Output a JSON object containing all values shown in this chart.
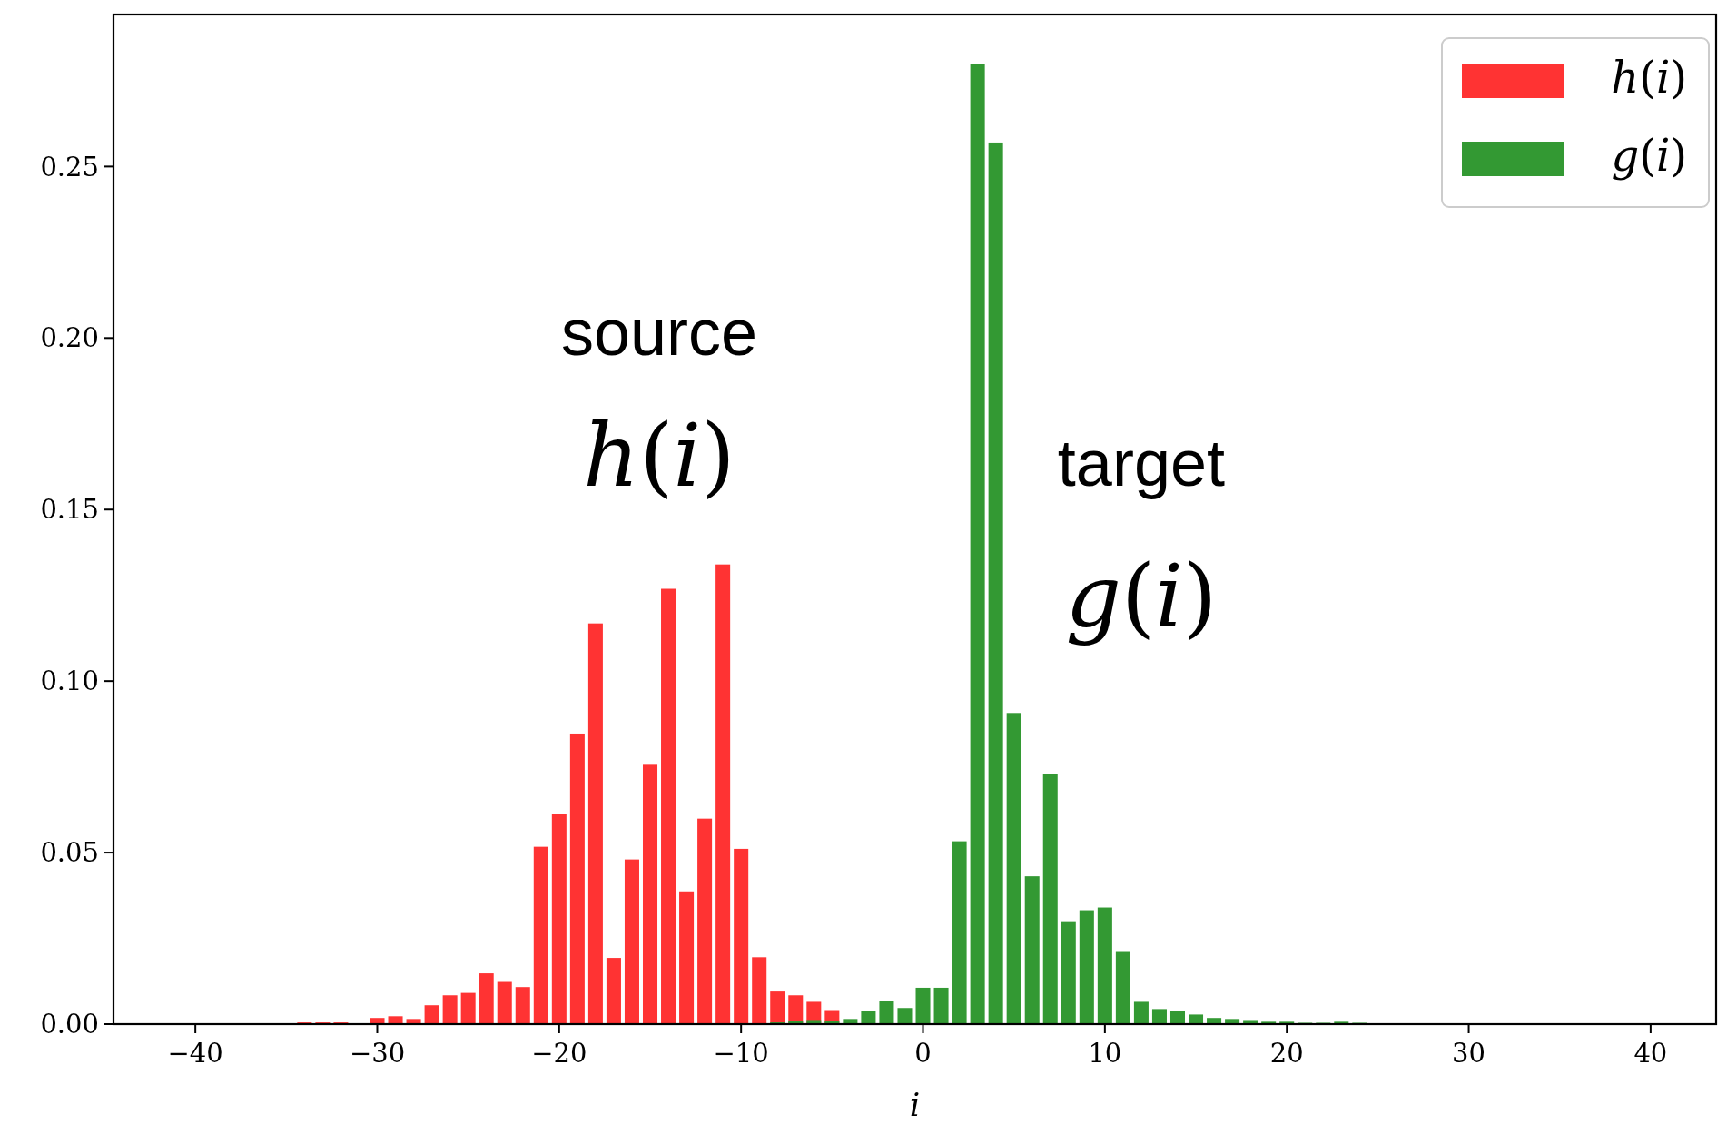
{
  "chart_data": {
    "type": "bar",
    "xlabel": "i",
    "series": [
      {
        "name": "h(i)",
        "color": "#ff3333",
        "x": [
          -34,
          -33,
          -32,
          -31,
          -30,
          -29,
          -28,
          -27,
          -26,
          -25,
          -24,
          -23,
          -22,
          -21,
          -20,
          -19,
          -18,
          -17,
          -16,
          -15,
          -14,
          -13,
          -12,
          -11,
          -10,
          -9,
          -8,
          -7,
          -6,
          -5
        ],
        "values": [
          0.0005,
          0.0005,
          0.0005,
          0,
          0.0018,
          0.0023,
          0.0015,
          0.0055,
          0.0084,
          0.0091,
          0.0148,
          0.0123,
          0.0108,
          0.0517,
          0.0613,
          0.0847,
          0.1168,
          0.0193,
          0.048,
          0.0756,
          0.1269,
          0.0387,
          0.0599,
          0.134,
          0.0511,
          0.0195,
          0.0095,
          0.0084,
          0.0065,
          0.0041
        ]
      },
      {
        "name": "g(i)",
        "color": "#339933",
        "x": [
          -8,
          -7,
          -6,
          -5,
          -4,
          -3,
          -2,
          -1,
          0,
          1,
          2,
          3,
          4,
          5,
          6,
          7,
          8,
          9,
          10,
          11,
          12,
          13,
          14,
          15,
          16,
          17,
          18,
          19,
          20,
          21,
          22,
          23,
          24
        ],
        "values": [
          0.0005,
          0.001,
          0.0012,
          0.001,
          0.0015,
          0.0038,
          0.0068,
          0.0047,
          0.0106,
          0.0106,
          0.0533,
          0.2799,
          0.257,
          0.0907,
          0.0431,
          0.0729,
          0.03,
          0.0332,
          0.034,
          0.0213,
          0.0065,
          0.0044,
          0.0039,
          0.0028,
          0.0018,
          0.0015,
          0.0012,
          0.0007,
          0.0007,
          0.0004,
          0.0004,
          0.0007,
          0.0004
        ]
      }
    ],
    "annotations": [
      "source",
      "h(i)",
      "target",
      "g(i)"
    ],
    "xlim": [
      -44.5,
      43.6
    ],
    "xticks": [
      {
        "value": -40,
        "label": "−40"
      },
      {
        "value": -30,
        "label": "−30"
      },
      {
        "value": -20,
        "label": "−20"
      },
      {
        "value": -10,
        "label": "−10"
      },
      0,
      10,
      20,
      30,
      40
    ],
    "ylim": [
      0,
      0.2943
    ],
    "yticks": [
      {
        "value": 0,
        "label": "0.00"
      },
      {
        "value": 0.05,
        "label": "0.05"
      },
      {
        "value": 0.1,
        "label": "0.10"
      },
      {
        "value": 0.15,
        "label": "0.15"
      },
      {
        "value": 0.2,
        "label": "0.20"
      },
      {
        "value": 0.25,
        "label": "0.25"
      }
    ],
    "legend": "top right",
    "grid": false
  }
}
